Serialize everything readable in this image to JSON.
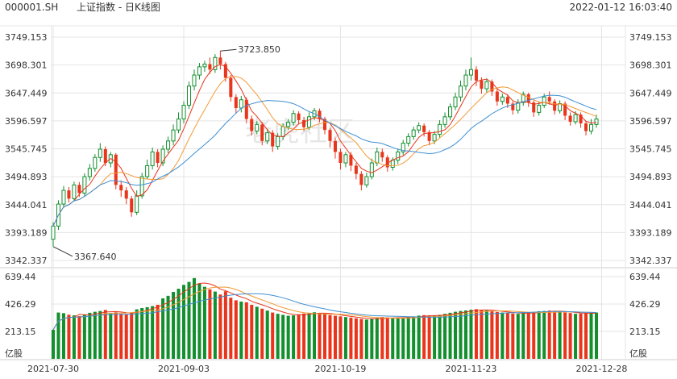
{
  "header": {
    "code": "000001.SH",
    "name": "上证指数 - 日K线图",
    "timestamp": "2022-01-12 16:03:40"
  },
  "watermark": "老虎社区",
  "colors": {
    "up": "#138f2e",
    "down": "#e8351c",
    "ma5": "#e8351c",
    "ma10": "#f29a35",
    "ma20": "#3f8fd2",
    "grid": "#e4e4e4",
    "text": "#333333"
  },
  "chart_data": {
    "type": "candlestick",
    "price_axis": {
      "ticks": [
        "3749.153",
        "3698.301",
        "3647.449",
        "3596.597",
        "3545.745",
        "3494.893",
        "3444.041",
        "3393.189",
        "3342.337"
      ],
      "ylim": [
        3342.337,
        3749.153
      ]
    },
    "volume_axis": {
      "ticks": [
        "639.44",
        "426.29",
        "213.15"
      ],
      "unit": "亿股",
      "ylim": [
        0,
        639.44
      ]
    },
    "x_ticks": [
      "2021-07-30",
      "2021-09-03",
      "2021-10-19",
      "2021-11-23",
      "2021-12-28"
    ],
    "x_tick_index": [
      0,
      25,
      55,
      80,
      105
    ],
    "annotations": [
      {
        "text": "3723.850",
        "index": 32,
        "price": 3723.85,
        "kind": "high"
      },
      {
        "text": "3367.640",
        "index": 0,
        "price": 3367.64,
        "kind": "low"
      }
    ],
    "candles": [
      [
        3381,
        3405,
        3368,
        3412,
        226
      ],
      [
        3405,
        3445,
        3398,
        3452,
        360
      ],
      [
        3445,
        3470,
        3438,
        3478,
        355
      ],
      [
        3470,
        3455,
        3448,
        3476,
        343
      ],
      [
        3455,
        3480,
        3450,
        3486,
        338
      ],
      [
        3480,
        3465,
        3458,
        3485,
        332
      ],
      [
        3465,
        3495,
        3460,
        3501,
        345
      ],
      [
        3495,
        3510,
        3488,
        3518,
        358
      ],
      [
        3510,
        3530,
        3504,
        3536,
        366
      ],
      [
        3530,
        3545,
        3522,
        3556,
        372
      ],
      [
        3545,
        3520,
        3514,
        3550,
        380
      ],
      [
        3520,
        3535,
        3512,
        3540,
        356
      ],
      [
        3535,
        3480,
        3472,
        3538,
        362
      ],
      [
        3480,
        3470,
        3458,
        3488,
        350
      ],
      [
        3470,
        3455,
        3445,
        3476,
        348
      ],
      [
        3455,
        3430,
        3422,
        3460,
        360
      ],
      [
        3430,
        3460,
        3425,
        3470,
        385
      ],
      [
        3460,
        3495,
        3455,
        3502,
        395
      ],
      [
        3495,
        3515,
        3490,
        3526,
        402
      ],
      [
        3515,
        3540,
        3508,
        3548,
        410
      ],
      [
        3540,
        3520,
        3512,
        3545,
        420
      ],
      [
        3520,
        3545,
        3514,
        3552,
        470
      ],
      [
        3545,
        3560,
        3538,
        3568,
        490
      ],
      [
        3560,
        3580,
        3552,
        3590,
        520
      ],
      [
        3580,
        3600,
        3574,
        3612,
        545
      ],
      [
        3600,
        3625,
        3592,
        3632,
        575
      ],
      [
        3625,
        3660,
        3618,
        3668,
        598
      ],
      [
        3660,
        3680,
        3652,
        3690,
        628
      ],
      [
        3680,
        3695,
        3672,
        3702,
        585
      ],
      [
        3695,
        3700,
        3686,
        3706,
        560
      ],
      [
        3700,
        3690,
        3682,
        3712,
        540
      ],
      [
        3690,
        3712,
        3684,
        3718,
        523
      ],
      [
        3712,
        3700,
        3690,
        3723.85,
        500
      ],
      [
        3700,
        3675,
        3668,
        3704,
        525
      ],
      [
        3675,
        3640,
        3632,
        3680,
        475
      ],
      [
        3640,
        3620,
        3610,
        3645,
        455
      ],
      [
        3620,
        3635,
        3612,
        3642,
        445
      ],
      [
        3635,
        3600,
        3592,
        3640,
        440
      ],
      [
        3600,
        3578,
        3570,
        3606,
        420
      ],
      [
        3578,
        3590,
        3572,
        3596,
        405
      ],
      [
        3590,
        3560,
        3552,
        3594,
        390
      ],
      [
        3560,
        3575,
        3554,
        3582,
        375
      ],
      [
        3575,
        3550,
        3540,
        3580,
        360
      ],
      [
        3550,
        3568,
        3544,
        3574,
        350
      ],
      [
        3568,
        3586,
        3562,
        3592,
        342
      ],
      [
        3586,
        3594,
        3580,
        3600,
        335
      ],
      [
        3594,
        3610,
        3588,
        3616,
        338
      ],
      [
        3610,
        3598,
        3590,
        3614,
        346
      ],
      [
        3598,
        3585,
        3578,
        3604,
        352
      ],
      [
        3585,
        3604,
        3580,
        3612,
        358
      ],
      [
        3604,
        3615,
        3598,
        3620,
        362
      ],
      [
        3615,
        3600,
        3594,
        3619,
        355
      ],
      [
        3600,
        3580,
        3572,
        3604,
        348
      ],
      [
        3580,
        3560,
        3548,
        3584,
        340
      ],
      [
        3560,
        3540,
        3528,
        3566,
        335
      ],
      [
        3540,
        3520,
        3508,
        3546,
        330
      ],
      [
        3520,
        3535,
        3512,
        3540,
        325
      ],
      [
        3535,
        3515,
        3505,
        3540,
        320
      ],
      [
        3515,
        3500,
        3490,
        3520,
        315
      ],
      [
        3500,
        3480,
        3470,
        3505,
        310
      ],
      [
        3480,
        3495,
        3475,
        3502,
        305
      ],
      [
        3495,
        3520,
        3490,
        3528,
        310
      ],
      [
        3520,
        3540,
        3514,
        3548,
        318
      ],
      [
        3540,
        3530,
        3522,
        3546,
        325
      ],
      [
        3530,
        3512,
        3504,
        3534,
        322
      ],
      [
        3512,
        3525,
        3506,
        3530,
        318
      ],
      [
        3525,
        3540,
        3518,
        3546,
        315
      ],
      [
        3540,
        3556,
        3534,
        3562,
        320
      ],
      [
        3556,
        3568,
        3550,
        3574,
        326
      ],
      [
        3568,
        3580,
        3562,
        3586,
        330
      ],
      [
        3580,
        3588,
        3574,
        3594,
        336
      ],
      [
        3588,
        3576,
        3568,
        3592,
        340
      ],
      [
        3576,
        3560,
        3552,
        3580,
        338
      ],
      [
        3560,
        3572,
        3554,
        3578,
        335
      ],
      [
        3572,
        3590,
        3566,
        3598,
        342
      ],
      [
        3590,
        3604,
        3584,
        3612,
        350
      ],
      [
        3604,
        3622,
        3598,
        3628,
        358
      ],
      [
        3622,
        3640,
        3616,
        3648,
        366
      ],
      [
        3640,
        3660,
        3632,
        3670,
        372
      ],
      [
        3660,
        3680,
        3652,
        3690,
        376
      ],
      [
        3680,
        3690,
        3670,
        3712,
        382
      ],
      [
        3690,
        3670,
        3660,
        3696,
        386
      ],
      [
        3670,
        3655,
        3646,
        3676,
        380
      ],
      [
        3655,
        3668,
        3648,
        3674,
        375
      ],
      [
        3668,
        3650,
        3642,
        3672,
        370
      ],
      [
        3650,
        3632,
        3624,
        3656,
        365
      ],
      [
        3632,
        3640,
        3626,
        3646,
        360
      ],
      [
        3640,
        3628,
        3620,
        3645,
        356
      ],
      [
        3628,
        3616,
        3608,
        3632,
        352
      ],
      [
        3616,
        3630,
        3610,
        3636,
        350
      ],
      [
        3630,
        3645,
        3624,
        3650,
        355
      ],
      [
        3645,
        3630,
        3622,
        3648,
        360
      ],
      [
        3630,
        3612,
        3604,
        3634,
        365
      ],
      [
        3612,
        3625,
        3606,
        3632,
        370
      ],
      [
        3625,
        3640,
        3620,
        3646,
        372
      ],
      [
        3640,
        3632,
        3626,
        3650,
        375
      ],
      [
        3632,
        3615,
        3608,
        3636,
        370
      ],
      [
        3615,
        3628,
        3610,
        3634,
        365
      ],
      [
        3628,
        3606,
        3598,
        3632,
        360
      ],
      [
        3606,
        3595,
        3588,
        3612,
        356
      ],
      [
        3595,
        3608,
        3590,
        3614,
        350
      ],
      [
        3608,
        3592,
        3584,
        3612,
        352
      ],
      [
        3592,
        3578,
        3570,
        3596,
        355
      ],
      [
        3578,
        3590,
        3572,
        3600,
        358
      ],
      [
        3590,
        3600,
        3584,
        3608,
        360
      ]
    ],
    "candle_fields": [
      "open",
      "close",
      "low",
      "high",
      "volume"
    ]
  }
}
